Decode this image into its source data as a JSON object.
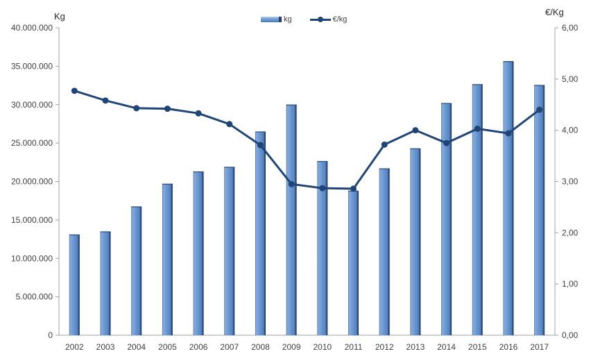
{
  "chart_data": {
    "type": "combo-bar-line",
    "title": "",
    "categories": [
      "2002",
      "2003",
      "2004",
      "2005",
      "2006",
      "2007",
      "2008",
      "2009",
      "2010",
      "2011",
      "2012",
      "2013",
      "2014",
      "2015",
      "2016",
      "2017"
    ],
    "series": [
      {
        "name": "kg",
        "type": "bar",
        "axis": "left",
        "values": [
          13100000,
          13500000,
          16750000,
          19700000,
          21300000,
          21900000,
          26500000,
          30000000,
          22650000,
          18800000,
          21700000,
          24300000,
          30200000,
          32650000,
          35650000,
          32550000
        ]
      },
      {
        "name": "€/kg",
        "type": "line",
        "axis": "right",
        "values": [
          4.77,
          4.58,
          4.43,
          4.42,
          4.33,
          4.12,
          3.71,
          2.95,
          2.87,
          2.86,
          3.72,
          4.0,
          3.75,
          4.03,
          3.94,
          4.4
        ]
      }
    ],
    "left_axis": {
      "title": "Kg",
      "min": 0,
      "max": 40000000,
      "tick_step": 5000000,
      "tick_labels": [
        "0",
        "5.000.000",
        "10.000.000",
        "15.000.000",
        "20.000.000",
        "25.000.000",
        "30.000.000",
        "35.000.000",
        "40.000.000"
      ]
    },
    "right_axis": {
      "title": "€/Kg",
      "min": 0,
      "max": 6,
      "tick_step": 1,
      "tick_labels": [
        "0,00",
        "1,00",
        "2,00",
        "3,00",
        "4,00",
        "5,00",
        "6,00"
      ]
    },
    "legend": {
      "position": "top",
      "entries": [
        "kg",
        "€/kg"
      ]
    },
    "grid": false
  },
  "colors": {
    "bar_fill": "#6190cc",
    "bar_highlight": "#85aada",
    "bar_edge_dark": "#203e66",
    "bar_top_edge": "#2c4a75",
    "line": "#1f4577",
    "axis": "#a0a0a0",
    "text": "#3f3f3f"
  }
}
